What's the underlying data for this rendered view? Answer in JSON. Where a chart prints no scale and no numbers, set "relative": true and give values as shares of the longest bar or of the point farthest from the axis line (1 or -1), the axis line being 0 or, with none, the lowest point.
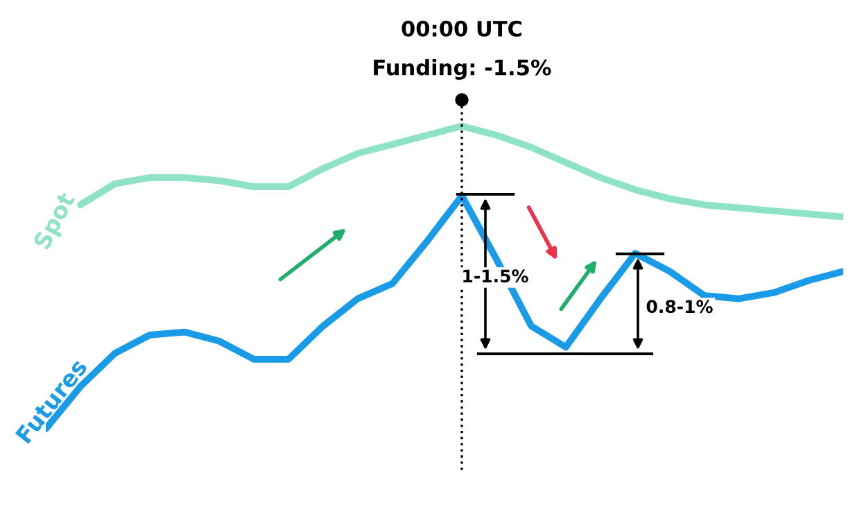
{
  "chart_data": {
    "type": "line",
    "relative": true,
    "title": "00:00 UTC",
    "subtitle": "Funding: -1.5%",
    "categories": [
      null,
      null,
      null,
      null,
      null,
      null,
      null,
      null,
      null,
      null,
      null,
      null,
      null,
      null,
      null,
      null,
      null,
      null,
      null,
      null,
      null,
      null,
      null,
      null
    ],
    "series": [
      {
        "name": "Spot",
        "color": "#8de3c4",
        "values": [
          null,
          0.74,
          0.81,
          0.83,
          0.83,
          0.82,
          0.8,
          0.8,
          0.86,
          0.91,
          0.94,
          0.97,
          1.0,
          0.97,
          0.93,
          0.88,
          0.83,
          0.79,
          0.76,
          0.74,
          0.73,
          0.72,
          0.71,
          0.7
        ]
      },
      {
        "name": "Futures",
        "color": "#1a9be8",
        "values": [
          0.0,
          0.14,
          0.25,
          0.31,
          0.32,
          0.29,
          0.23,
          0.23,
          0.34,
          0.43,
          0.48,
          0.62,
          0.77,
          0.56,
          0.34,
          0.27,
          0.43,
          0.58,
          0.52,
          0.44,
          0.43,
          0.45,
          0.49,
          0.52
        ]
      }
    ],
    "annotations": [
      "1-1.5%",
      "0.8-1%"
    ],
    "grid": false,
    "legend": false,
    "marker": "none",
    "line_style": "solid"
  }
}
